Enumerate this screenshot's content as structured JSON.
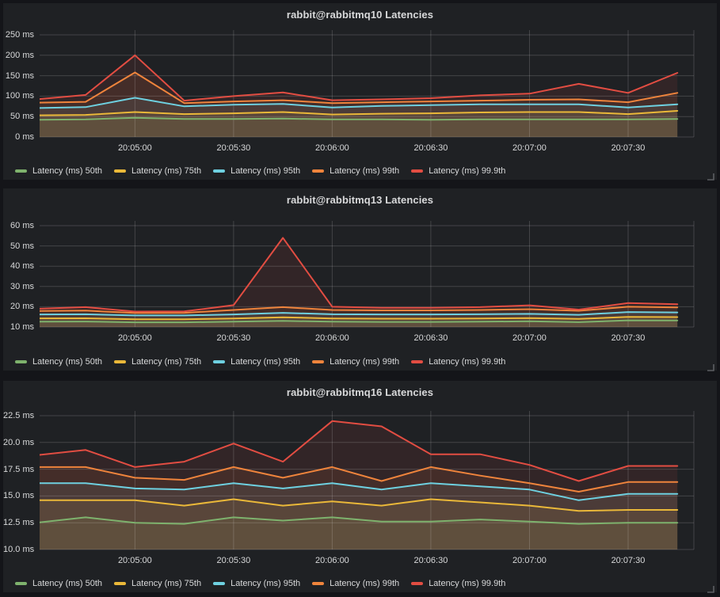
{
  "theme": {
    "page_bg": "#141519",
    "panel_bg": "#1f2124",
    "grid_color": "rgba(255,255,255,0.16)",
    "text_color": "#d8d9da",
    "fill_opacity": 0.1
  },
  "chart_data": [
    {
      "type": "area",
      "title": "rabbit@rabbitmq10 Latencies",
      "xlabel": "",
      "ylabel": "",
      "ylim": [
        0,
        250
      ],
      "yticks": [
        0,
        50,
        100,
        150,
        200,
        250
      ],
      "ytick_labels": [
        "0 ms",
        "50 ms",
        "100 ms",
        "150 ms",
        "200 ms",
        "250 ms"
      ],
      "x_tick_labels": [
        "20:05:00",
        "20:05:30",
        "20:06:00",
        "20:06:30",
        "20:07:00",
        "20:07:30"
      ],
      "xlim": [
        "20:04:31",
        "20:07:50"
      ],
      "x_times": [
        "20:04:30",
        "20:04:45",
        "20:05:00",
        "20:05:15",
        "20:05:30",
        "20:05:45",
        "20:06:00",
        "20:06:15",
        "20:06:30",
        "20:06:45",
        "20:07:00",
        "20:07:15",
        "20:07:30",
        "20:07:45"
      ],
      "grid": true,
      "legend_position": "bottom",
      "series": [
        {
          "name": "Latency (ms) 50th",
          "color": "#7EB26D",
          "values": [
            42,
            43,
            47,
            44,
            44,
            45,
            43,
            43,
            42,
            43,
            43,
            43,
            43,
            44
          ]
        },
        {
          "name": "Latency (ms) 75th",
          "color": "#EAB839",
          "values": [
            53,
            54,
            61,
            56,
            58,
            61,
            55,
            57,
            58,
            60,
            61,
            61,
            56,
            64
          ]
        },
        {
          "name": "Latency (ms) 95th",
          "color": "#6ED0E0",
          "values": [
            71,
            73,
            96,
            75,
            79,
            81,
            72,
            76,
            78,
            80,
            80,
            80,
            72,
            80
          ]
        },
        {
          "name": "Latency (ms) 99th",
          "color": "#EF843C",
          "values": [
            84,
            86,
            158,
            83,
            87,
            90,
            83,
            85,
            87,
            89,
            91,
            92,
            85,
            108
          ]
        },
        {
          "name": "Latency (ms) 99.9th",
          "color": "#E24D42",
          "values": [
            92,
            103,
            200,
            89,
            100,
            109,
            90,
            92,
            95,
            102,
            106,
            130,
            108,
            157
          ]
        }
      ]
    },
    {
      "type": "area",
      "title": "rabbit@rabbitmq13 Latencies",
      "xlabel": "",
      "ylabel": "",
      "ylim": [
        10,
        60
      ],
      "yticks": [
        10,
        20,
        30,
        40,
        50,
        60
      ],
      "ytick_labels": [
        "10 ms",
        "20 ms",
        "30 ms",
        "40 ms",
        "50 ms",
        "60 ms"
      ],
      "x_tick_labels": [
        "20:05:00",
        "20:05:30",
        "20:06:00",
        "20:06:30",
        "20:07:00",
        "20:07:30"
      ],
      "xlim": [
        "20:04:31",
        "20:07:50"
      ],
      "x_times": [
        "20:04:30",
        "20:04:45",
        "20:05:00",
        "20:05:15",
        "20:05:30",
        "20:05:45",
        "20:06:00",
        "20:06:15",
        "20:06:30",
        "20:06:45",
        "20:07:00",
        "20:07:15",
        "20:07:30",
        "20:07:45"
      ],
      "grid": true,
      "legend_position": "bottom",
      "series": [
        {
          "name": "Latency (ms) 50th",
          "color": "#7EB26D",
          "values": [
            12.6,
            12.7,
            12.3,
            12.3,
            12.6,
            13.0,
            12.6,
            12.5,
            12.5,
            12.6,
            12.8,
            12.4,
            13.3,
            13.2
          ]
        },
        {
          "name": "Latency (ms) 75th",
          "color": "#EAB839",
          "values": [
            14.2,
            14.3,
            13.8,
            13.8,
            14.2,
            14.8,
            14.2,
            14.1,
            14.1,
            14.2,
            14.4,
            14.0,
            15.0,
            14.9
          ]
        },
        {
          "name": "Latency (ms) 95th",
          "color": "#6ED0E0",
          "values": [
            16.2,
            16.3,
            15.7,
            15.7,
            16.2,
            17.0,
            16.3,
            16.2,
            16.2,
            16.3,
            16.5,
            16.0,
            17.4,
            17.2
          ]
        },
        {
          "name": "Latency (ms) 99th",
          "color": "#EF843C",
          "values": [
            17.9,
            18.1,
            16.9,
            17.0,
            18.4,
            19.8,
            18.4,
            18.2,
            18.2,
            18.4,
            18.8,
            18.0,
            20.0,
            19.7
          ]
        },
        {
          "name": "Latency (ms) 99.9th",
          "color": "#E24D42",
          "values": [
            19.0,
            19.8,
            17.6,
            17.7,
            20.8,
            54.0,
            20.0,
            19.5,
            19.5,
            19.8,
            20.7,
            18.6,
            21.8,
            21.2
          ]
        }
      ]
    },
    {
      "type": "area",
      "title": "rabbit@rabbitmq16 Latencies",
      "xlabel": "",
      "ylabel": "",
      "ylim": [
        10,
        22.5
      ],
      "yticks": [
        10,
        12.5,
        15,
        17.5,
        20,
        22.5
      ],
      "ytick_labels": [
        "10.0 ms",
        "12.5 ms",
        "15.0 ms",
        "17.5 ms",
        "20.0 ms",
        "22.5 ms"
      ],
      "x_tick_labels": [
        "20:05:00",
        "20:05:30",
        "20:06:00",
        "20:06:30",
        "20:07:00",
        "20:07:30"
      ],
      "xlim": [
        "20:04:31",
        "20:07:50"
      ],
      "x_times": [
        "20:04:30",
        "20:04:45",
        "20:05:00",
        "20:05:15",
        "20:05:30",
        "20:05:45",
        "20:06:00",
        "20:06:15",
        "20:06:30",
        "20:06:45",
        "20:07:00",
        "20:07:15",
        "20:07:30",
        "20:07:45"
      ],
      "grid": true,
      "legend_position": "bottom",
      "series": [
        {
          "name": "Latency (ms) 50th",
          "color": "#7EB26D",
          "values": [
            12.5,
            13.0,
            12.5,
            12.4,
            13.0,
            12.7,
            13.0,
            12.6,
            12.6,
            12.8,
            12.6,
            12.4,
            12.5,
            12.5
          ]
        },
        {
          "name": "Latency (ms) 75th",
          "color": "#EAB839",
          "values": [
            14.6,
            14.6,
            14.6,
            14.1,
            14.7,
            14.1,
            14.5,
            14.1,
            14.7,
            14.4,
            14.1,
            13.6,
            13.7,
            13.7
          ]
        },
        {
          "name": "Latency (ms) 95th",
          "color": "#6ED0E0",
          "values": [
            16.2,
            16.2,
            15.7,
            15.6,
            16.2,
            15.7,
            16.2,
            15.6,
            16.2,
            15.9,
            15.6,
            14.6,
            15.2,
            15.2
          ]
        },
        {
          "name": "Latency (ms) 99th",
          "color": "#EF843C",
          "values": [
            17.7,
            17.7,
            16.7,
            16.5,
            17.7,
            16.7,
            17.7,
            16.4,
            17.7,
            16.9,
            16.2,
            15.4,
            16.3,
            16.3
          ]
        },
        {
          "name": "Latency (ms) 99.9th",
          "color": "#E24D42",
          "values": [
            18.8,
            19.3,
            17.7,
            18.2,
            19.9,
            18.2,
            22.0,
            21.5,
            18.9,
            18.9,
            17.9,
            16.4,
            17.8,
            17.8
          ]
        }
      ]
    }
  ]
}
